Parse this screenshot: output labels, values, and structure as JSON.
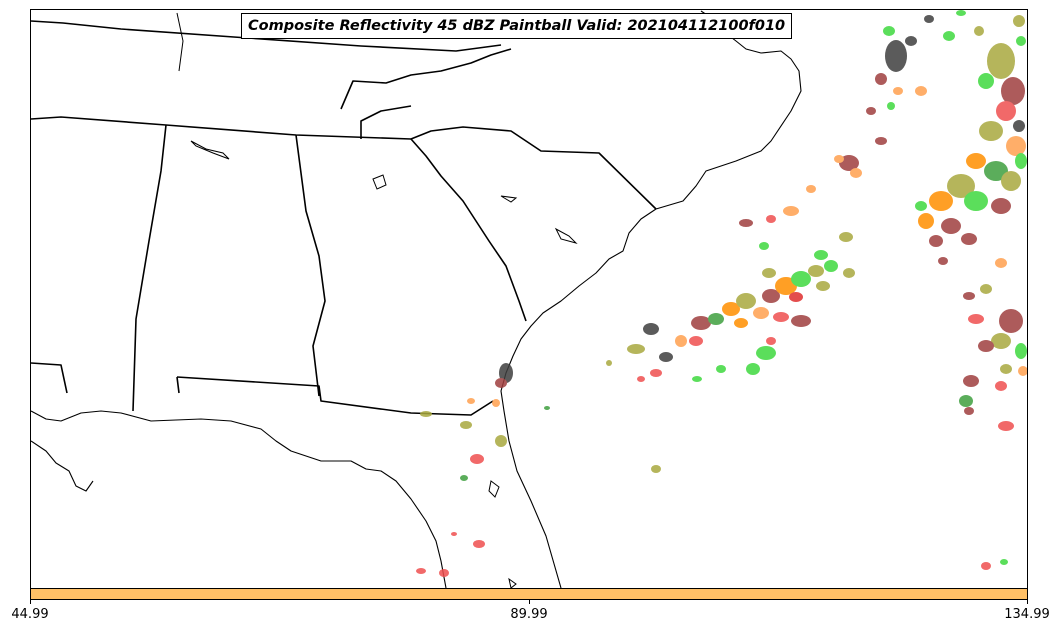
{
  "title": "Composite Reflectivity 45 dBZ Paintball Valid: 202104112100f010",
  "colorbar": {
    "color": "#ffc066",
    "tick_labels": [
      "44.99",
      "89.99",
      "134.99"
    ]
  },
  "colors": {
    "member_palette": [
      "#ef4f4f",
      "#ffa04f",
      "#3fd93f",
      "#9f3f3f",
      "#3f3f3f",
      "#a9a93f",
      "#ff8f00",
      "#3f9f3f",
      "#df2f2f"
    ]
  },
  "map": {
    "projection": "regional Southeast US",
    "features": [
      "state borders",
      "coastlines",
      "lakes"
    ]
  }
}
